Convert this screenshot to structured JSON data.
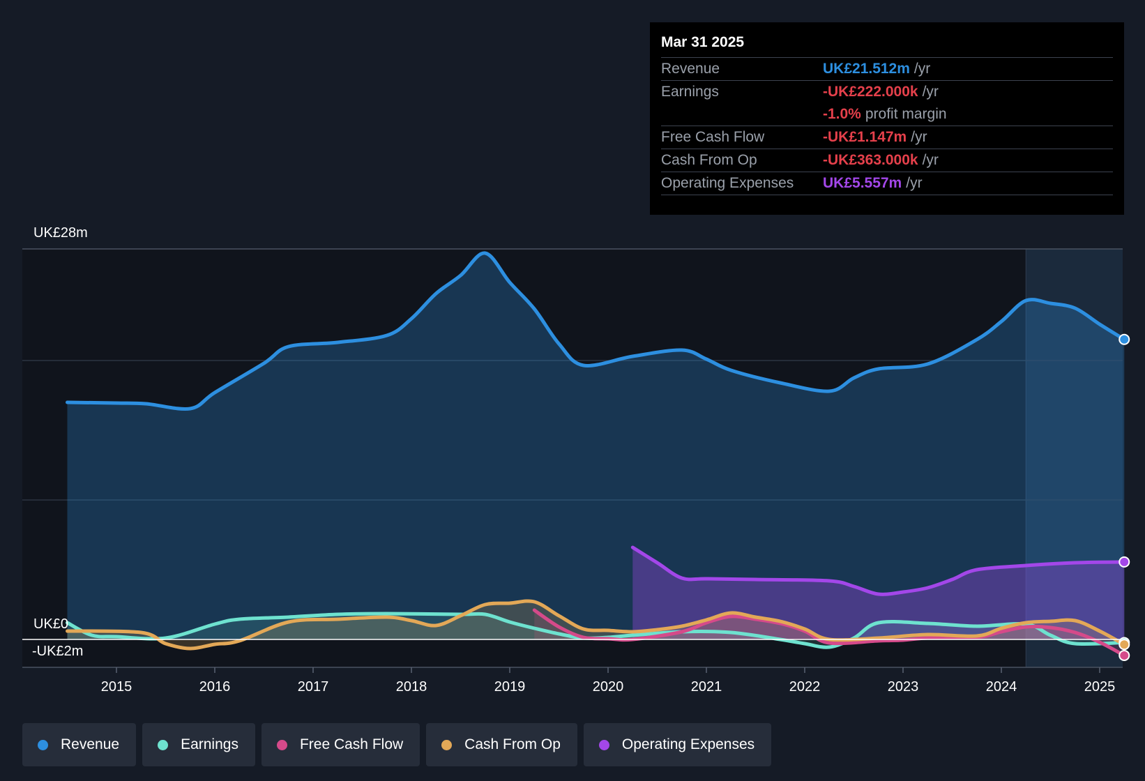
{
  "chart_data": {
    "type": "line",
    "title": "",
    "y_axis": {
      "top_label": "UK£28m",
      "zero_label": "UK£0",
      "bottom_label": "-UK£2m",
      "ylim": [
        -2,
        28
      ]
    },
    "x_ticks": [
      "2015",
      "2016",
      "2017",
      "2018",
      "2019",
      "2020",
      "2021",
      "2022",
      "2023",
      "2024",
      "2025"
    ],
    "xlim": [
      2014.05,
      2025.25
    ],
    "series": [
      {
        "name": "Revenue",
        "color": "#2d8fe0",
        "fill": true,
        "points": [
          [
            2014.5,
            17
          ],
          [
            2015.0,
            16.95
          ],
          [
            2015.3,
            16.9
          ],
          [
            2015.75,
            16.55
          ],
          [
            2016.0,
            17.7
          ],
          [
            2016.5,
            19.8
          ],
          [
            2016.75,
            21.0
          ],
          [
            2017.25,
            21.3
          ],
          [
            2017.75,
            21.8
          ],
          [
            2018.0,
            23.0
          ],
          [
            2018.25,
            24.8
          ],
          [
            2018.5,
            26.1
          ],
          [
            2018.75,
            27.7
          ],
          [
            2019.0,
            25.6
          ],
          [
            2019.25,
            23.7
          ],
          [
            2019.5,
            21.2
          ],
          [
            2019.75,
            19.65
          ],
          [
            2020.25,
            20.3
          ],
          [
            2020.75,
            20.75
          ],
          [
            2021.0,
            20.1
          ],
          [
            2021.25,
            19.3
          ],
          [
            2021.75,
            18.4
          ],
          [
            2022.25,
            17.8
          ],
          [
            2022.5,
            18.75
          ],
          [
            2022.75,
            19.4
          ],
          [
            2023.25,
            19.75
          ],
          [
            2023.75,
            21.5
          ],
          [
            2024.0,
            22.8
          ],
          [
            2024.25,
            24.3
          ],
          [
            2024.5,
            24.1
          ],
          [
            2024.75,
            23.75
          ],
          [
            2025.0,
            22.6
          ],
          [
            2025.25,
            21.512
          ]
        ]
      },
      {
        "name": "Operating Expenses",
        "color": "#a347e9",
        "fill": true,
        "points": [
          [
            2020.25,
            6.6
          ],
          [
            2020.5,
            5.5
          ],
          [
            2020.75,
            4.4
          ],
          [
            2021.0,
            4.35
          ],
          [
            2021.5,
            4.3
          ],
          [
            2022.25,
            4.2
          ],
          [
            2022.5,
            3.8
          ],
          [
            2022.75,
            3.25
          ],
          [
            2023.0,
            3.4
          ],
          [
            2023.25,
            3.7
          ],
          [
            2023.5,
            4.3
          ],
          [
            2023.75,
            5.0
          ],
          [
            2024.25,
            5.3
          ],
          [
            2024.75,
            5.5
          ],
          [
            2025.25,
            5.557
          ]
        ]
      },
      {
        "name": "Earnings",
        "color": "#6ee2cf",
        "fill": true,
        "points": [
          [
            2014.5,
            1.2
          ],
          [
            2014.75,
            0.3
          ],
          [
            2015.0,
            0.2
          ],
          [
            2015.5,
            0.1
          ],
          [
            2016.0,
            1.1
          ],
          [
            2016.25,
            1.45
          ],
          [
            2016.75,
            1.6
          ],
          [
            2017.25,
            1.8
          ],
          [
            2017.75,
            1.85
          ],
          [
            2018.5,
            1.8
          ],
          [
            2018.75,
            1.8
          ],
          [
            2019.0,
            1.25
          ],
          [
            2019.25,
            0.8
          ],
          [
            2019.5,
            0.4
          ],
          [
            2019.75,
            0.1
          ],
          [
            2020.0,
            0.15
          ],
          [
            2020.25,
            0.3
          ],
          [
            2020.75,
            0.55
          ],
          [
            2021.25,
            0.5
          ],
          [
            2021.75,
            0.0
          ],
          [
            2022.0,
            -0.3
          ],
          [
            2022.25,
            -0.55
          ],
          [
            2022.5,
            0.1
          ],
          [
            2022.75,
            1.2
          ],
          [
            2023.25,
            1.15
          ],
          [
            2023.75,
            0.95
          ],
          [
            2024.25,
            1.1
          ],
          [
            2024.5,
            0.3
          ],
          [
            2024.75,
            -0.3
          ],
          [
            2025.25,
            -0.222
          ]
        ]
      },
      {
        "name": "Free Cash Flow",
        "color": "#d54a8a",
        "fill": true,
        "points": [
          [
            2019.25,
            2.1
          ],
          [
            2019.5,
            0.9
          ],
          [
            2019.75,
            0.15
          ],
          [
            2020.0,
            0.05
          ],
          [
            2020.25,
            0.0
          ],
          [
            2020.75,
            0.55
          ],
          [
            2021.0,
            1.2
          ],
          [
            2021.25,
            1.65
          ],
          [
            2021.5,
            1.45
          ],
          [
            2021.75,
            1.15
          ],
          [
            2022.0,
            0.6
          ],
          [
            2022.25,
            -0.25
          ],
          [
            2022.75,
            -0.1
          ],
          [
            2023.0,
            -0.05
          ],
          [
            2023.25,
            0.1
          ],
          [
            2023.75,
            0.15
          ],
          [
            2024.0,
            0.55
          ],
          [
            2024.25,
            0.9
          ],
          [
            2024.5,
            0.85
          ],
          [
            2024.75,
            0.5
          ],
          [
            2025.0,
            -0.2
          ],
          [
            2025.25,
            -1.147
          ]
        ]
      },
      {
        "name": "Cash From Op",
        "color": "#e3a857",
        "fill": true,
        "points": [
          [
            2014.5,
            0.6
          ],
          [
            2015.25,
            0.5
          ],
          [
            2015.5,
            -0.3
          ],
          [
            2015.75,
            -0.65
          ],
          [
            2016.0,
            -0.35
          ],
          [
            2016.25,
            -0.1
          ],
          [
            2016.75,
            1.25
          ],
          [
            2017.25,
            1.45
          ],
          [
            2017.75,
            1.6
          ],
          [
            2018.0,
            1.35
          ],
          [
            2018.25,
            1.0
          ],
          [
            2018.5,
            1.7
          ],
          [
            2018.75,
            2.5
          ],
          [
            2019.0,
            2.6
          ],
          [
            2019.25,
            2.7
          ],
          [
            2019.5,
            1.7
          ],
          [
            2019.75,
            0.75
          ],
          [
            2020.0,
            0.65
          ],
          [
            2020.25,
            0.55
          ],
          [
            2020.5,
            0.7
          ],
          [
            2020.75,
            0.95
          ],
          [
            2021.0,
            1.4
          ],
          [
            2021.25,
            1.9
          ],
          [
            2021.5,
            1.6
          ],
          [
            2021.75,
            1.3
          ],
          [
            2022.0,
            0.75
          ],
          [
            2022.25,
            0.0
          ],
          [
            2022.75,
            0.1
          ],
          [
            2023.25,
            0.35
          ],
          [
            2023.75,
            0.25
          ],
          [
            2024.0,
            0.8
          ],
          [
            2024.25,
            1.2
          ],
          [
            2024.5,
            1.3
          ],
          [
            2024.75,
            1.35
          ],
          [
            2025.0,
            0.6
          ],
          [
            2025.25,
            -0.363
          ]
        ]
      }
    ],
    "forecast_start": 2024.25,
    "legend": [
      {
        "name": "Revenue",
        "color": "#2d8fe0"
      },
      {
        "name": "Earnings",
        "color": "#6ee2cf"
      },
      {
        "name": "Free Cash Flow",
        "color": "#d54a8a"
      },
      {
        "name": "Cash From Op",
        "color": "#e3a857"
      },
      {
        "name": "Operating Expenses",
        "color": "#a347e9"
      }
    ]
  },
  "tooltip": {
    "date": "Mar 31 2025",
    "rows": [
      {
        "label": "Revenue",
        "value": "UK£21.512m",
        "unit": "/yr",
        "color": "#2d8fe0"
      },
      {
        "label": "Earnings",
        "value": "-UK£222.000k",
        "unit": "/yr",
        "color": "#e5404b"
      },
      {
        "label": "",
        "value": "-1.0%",
        "unit": "profit margin",
        "color": "#e5404b"
      },
      {
        "label": "Free Cash Flow",
        "value": "-UK£1.147m",
        "unit": "/yr",
        "color": "#e5404b"
      },
      {
        "label": "Cash From Op",
        "value": "-UK£363.000k",
        "unit": "/yr",
        "color": "#e5404b"
      },
      {
        "label": "Operating Expenses",
        "value": "UK£5.557m",
        "unit": "/yr",
        "color": "#a347e9"
      }
    ]
  }
}
